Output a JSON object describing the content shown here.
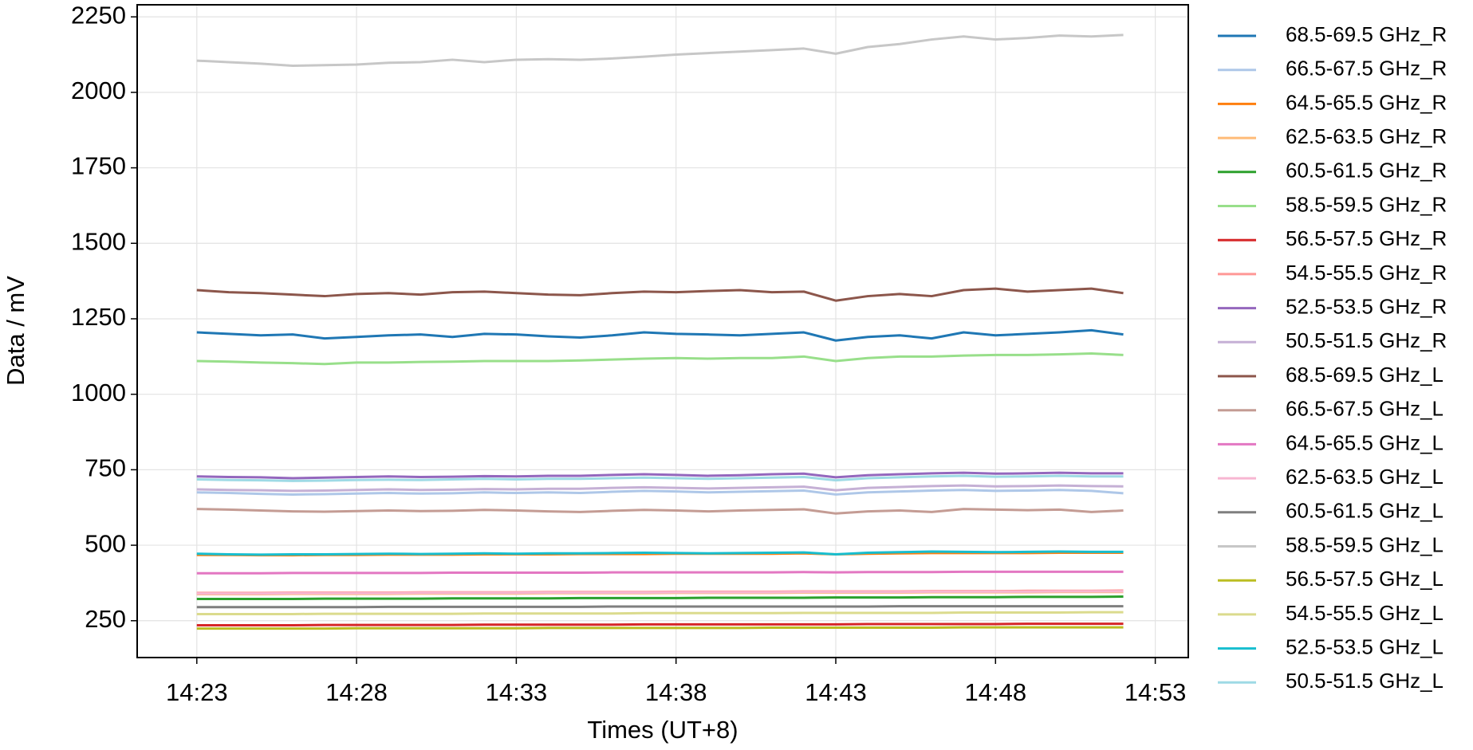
{
  "chart_data": {
    "type": "line",
    "x_label": "Times (UT+8)",
    "y_label": "Data / mV",
    "x": [
      "14:23",
      "14:24",
      "14:25",
      "14:26",
      "14:27",
      "14:28",
      "14:29",
      "14:30",
      "14:31",
      "14:32",
      "14:33",
      "14:34",
      "14:35",
      "14:36",
      "14:37",
      "14:38",
      "14:39",
      "14:40",
      "14:41",
      "14:42",
      "14:43",
      "14:44",
      "14:45",
      "14:46",
      "14:47",
      "14:48",
      "14:49",
      "14:50",
      "14:51",
      "14:52"
    ],
    "xlim": [
      "14:21:08",
      "14:54:02"
    ],
    "xticks": [
      "14:23",
      "14:28",
      "14:33",
      "14:38",
      "14:43",
      "14:48",
      "14:53"
    ],
    "ylim": [
      128,
      2290
    ],
    "yticks": [
      250,
      500,
      750,
      1000,
      1250,
      1500,
      1750,
      2000,
      2250
    ],
    "grid": true,
    "legend": "outside right",
    "series": [
      {
        "name": "68.5-69.5 GHz_R",
        "color": "#1f77b4",
        "values": [
          1205,
          1200,
          1195,
          1198,
          1185,
          1190,
          1195,
          1198,
          1190,
          1200,
          1198,
          1192,
          1188,
          1195,
          1205,
          1200,
          1198,
          1195,
          1200,
          1205,
          1178,
          1190,
          1195,
          1185,
          1205,
          1195,
          1200,
          1205,
          1212,
          1198
        ]
      },
      {
        "name": "66.5-67.5 GHz_R",
        "color": "#aec7e8",
        "values": [
          675,
          673,
          670,
          668,
          669,
          671,
          673,
          671,
          672,
          675,
          673,
          675,
          673,
          677,
          680,
          678,
          675,
          677,
          679,
          681,
          668,
          675,
          678,
          681,
          683,
          680,
          681,
          683,
          680,
          672
        ]
      },
      {
        "name": "64.5-65.5 GHz_R",
        "color": "#ff7f0e",
        "values": [
          468,
          468,
          467,
          467,
          468,
          468,
          469,
          469,
          469,
          470,
          470,
          470,
          471,
          471,
          471,
          472,
          472,
          472,
          472,
          473,
          470,
          472,
          473,
          474,
          474,
          474,
          474,
          475,
          475,
          475
        ]
      },
      {
        "name": "62.5-63.5 GHz_R",
        "color": "#ffbb78",
        "values": [
          338,
          338,
          338,
          339,
          339,
          339,
          339,
          340,
          340,
          340,
          340,
          341,
          341,
          341,
          341,
          342,
          342,
          342,
          342,
          343,
          343,
          343,
          343,
          344,
          344,
          344,
          344,
          345,
          345,
          345
        ]
      },
      {
        "name": "60.5-61.5 GHz_R",
        "color": "#2ca02c",
        "values": [
          322,
          322,
          322,
          322,
          323,
          323,
          323,
          323,
          324,
          324,
          324,
          324,
          325,
          325,
          325,
          325,
          326,
          326,
          326,
          326,
          327,
          327,
          327,
          328,
          328,
          328,
          329,
          329,
          329,
          330
        ]
      },
      {
        "name": "58.5-59.5 GHz_R",
        "color": "#98df8a",
        "values": [
          1110,
          1108,
          1105,
          1103,
          1100,
          1105,
          1105,
          1107,
          1108,
          1110,
          1110,
          1110,
          1112,
          1115,
          1118,
          1120,
          1118,
          1120,
          1120,
          1125,
          1110,
          1120,
          1125,
          1125,
          1128,
          1130,
          1130,
          1132,
          1135,
          1130
        ]
      },
      {
        "name": "56.5-57.5 GHz_R",
        "color": "#d62728",
        "values": [
          235,
          235,
          235,
          235,
          236,
          236,
          236,
          236,
          236,
          237,
          237,
          237,
          237,
          237,
          238,
          238,
          238,
          238,
          238,
          238,
          238,
          239,
          239,
          239,
          239,
          239,
          240,
          240,
          240,
          240
        ]
      },
      {
        "name": "54.5-55.5 GHz_R",
        "color": "#ff9896",
        "values": [
          342,
          342,
          342,
          343,
          343,
          343,
          343,
          344,
          344,
          344,
          344,
          345,
          345,
          345,
          345,
          346,
          346,
          346,
          346,
          347,
          347,
          347,
          347,
          348,
          348,
          348,
          349,
          349,
          349,
          350
        ]
      },
      {
        "name": "52.5-53.5 GHz_R",
        "color": "#9467bd",
        "values": [
          728,
          726,
          725,
          722,
          724,
          726,
          728,
          726,
          727,
          729,
          728,
          730,
          730,
          733,
          735,
          733,
          730,
          732,
          735,
          737,
          725,
          732,
          735,
          738,
          740,
          737,
          738,
          740,
          738,
          738
        ]
      },
      {
        "name": "50.5-51.5 GHz_R",
        "color": "#c5b0d5",
        "values": [
          685,
          683,
          682,
          680,
          681,
          683,
          685,
          683,
          684,
          686,
          685,
          687,
          687,
          690,
          692,
          690,
          688,
          690,
          692,
          694,
          682,
          690,
          693,
          696,
          698,
          695,
          696,
          698,
          696,
          695
        ]
      },
      {
        "name": "68.5-69.5 GHz_L",
        "color": "#8c564b",
        "values": [
          1345,
          1338,
          1335,
          1330,
          1325,
          1332,
          1335,
          1330,
          1338,
          1340,
          1335,
          1330,
          1328,
          1335,
          1340,
          1338,
          1342,
          1345,
          1338,
          1340,
          1310,
          1325,
          1332,
          1325,
          1345,
          1350,
          1340,
          1345,
          1350,
          1335
        ]
      },
      {
        "name": "66.5-67.5 GHz_L",
        "color": "#c49c94",
        "values": [
          620,
          618,
          615,
          612,
          611,
          613,
          615,
          613,
          614,
          617,
          615,
          612,
          610,
          614,
          617,
          615,
          612,
          615,
          617,
          619,
          605,
          612,
          615,
          610,
          620,
          618,
          616,
          618,
          610,
          615
        ]
      },
      {
        "name": "64.5-65.5 GHz_L",
        "color": "#e377c2",
        "values": [
          407,
          407,
          407,
          408,
          408,
          408,
          408,
          408,
          409,
          409,
          409,
          409,
          409,
          410,
          410,
          410,
          410,
          410,
          410,
          411,
          410,
          411,
          411,
          411,
          412,
          412,
          412,
          412,
          412,
          412
        ]
      },
      {
        "name": "62.5-63.5 GHz_L",
        "color": "#f7b6d2",
        "values": [
          340,
          340,
          340,
          341,
          341,
          341,
          341,
          342,
          342,
          342,
          342,
          343,
          343,
          343,
          343,
          344,
          344,
          344,
          344,
          345,
          345,
          345,
          345,
          346,
          346,
          346,
          346,
          347,
          347,
          347
        ]
      },
      {
        "name": "60.5-61.5 GHz_L",
        "color": "#7f7f7f",
        "values": [
          295,
          295,
          295,
          295,
          295,
          295,
          296,
          296,
          296,
          296,
          296,
          296,
          296,
          297,
          297,
          297,
          297,
          297,
          297,
          297,
          297,
          297,
          298,
          298,
          298,
          298,
          298,
          298,
          298,
          298
        ]
      },
      {
        "name": "58.5-59.5 GHz_L",
        "color": "#c7c7c7",
        "values": [
          2105,
          2100,
          2095,
          2088,
          2090,
          2092,
          2098,
          2100,
          2108,
          2100,
          2108,
          2110,
          2108,
          2112,
          2118,
          2125,
          2130,
          2135,
          2140,
          2145,
          2128,
          2150,
          2160,
          2175,
          2185,
          2175,
          2180,
          2188,
          2185,
          2190
        ]
      },
      {
        "name": "56.5-57.5 GHz_L",
        "color": "#bcbd22",
        "values": [
          224,
          224,
          224,
          224,
          224,
          225,
          225,
          225,
          225,
          225,
          225,
          226,
          226,
          226,
          226,
          226,
          226,
          226,
          227,
          227,
          227,
          227,
          227,
          227,
          228,
          228,
          228,
          228,
          228,
          228
        ]
      },
      {
        "name": "54.5-55.5 GHz_L",
        "color": "#dbdb8d",
        "values": [
          272,
          272,
          272,
          272,
          273,
          273,
          273,
          273,
          273,
          274,
          274,
          274,
          274,
          274,
          275,
          275,
          275,
          275,
          275,
          276,
          276,
          276,
          276,
          276,
          277,
          277,
          277,
          277,
          278,
          278
        ]
      },
      {
        "name": "52.5-53.5 GHz_L",
        "color": "#17becf",
        "values": [
          472,
          470,
          469,
          470,
          470,
          471,
          472,
          471,
          472,
          473,
          472,
          473,
          473,
          474,
          475,
          474,
          473,
          474,
          475,
          476,
          470,
          475,
          477,
          479,
          478,
          477,
          478,
          479,
          478,
          478
        ]
      },
      {
        "name": "50.5-51.5 GHz_L",
        "color": "#9edae5",
        "values": [
          718,
          716,
          715,
          713,
          714,
          716,
          717,
          716,
          718,
          720,
          718,
          720,
          720,
          722,
          724,
          722,
          720,
          722,
          724,
          726,
          715,
          722,
          725,
          728,
          730,
          727,
          728,
          730,
          728,
          728
        ]
      }
    ]
  }
}
